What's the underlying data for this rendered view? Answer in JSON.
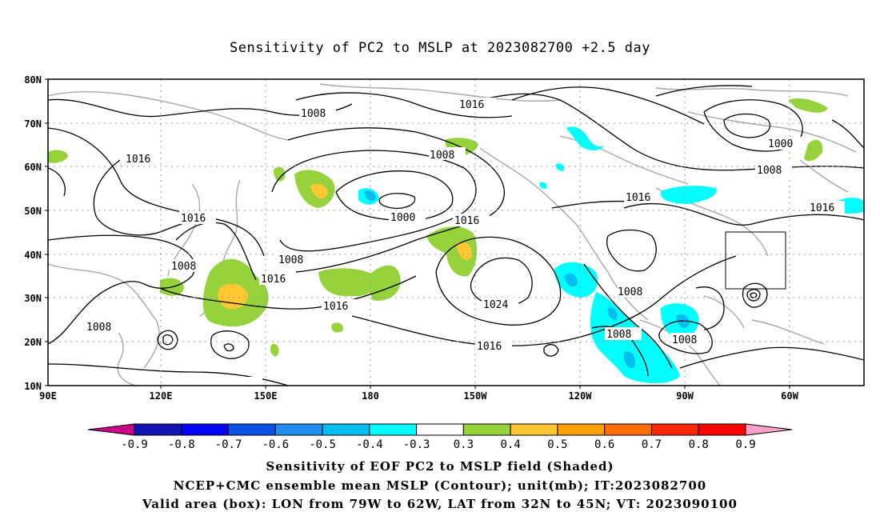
{
  "title": "Sensitivity of PC2 to MSLP at 2023082700 +2.5 day",
  "lat_labels": [
    "80N",
    "70N",
    "60N",
    "50N",
    "40N",
    "30N",
    "20N",
    "10N"
  ],
  "lon_labels": [
    "90E",
    "120E",
    "150E",
    "180",
    "150W",
    "120W",
    "90W",
    "60W"
  ],
  "contour_labels": [
    "1008",
    "1016",
    "1008",
    "1016",
    "1008",
    "1000",
    "1000",
    "1008",
    "1016",
    "1016",
    "1016",
    "1008",
    "1016",
    "1008",
    "1016",
    "1024",
    "1016",
    "1008",
    "1008",
    "1016",
    "1008"
  ],
  "colorbar": {
    "labels": [
      "-0.9",
      "-0.8",
      "-0.7",
      "-0.6",
      "-0.5",
      "-0.4",
      "-0.3",
      "0.3",
      "0.4",
      "0.5",
      "0.6",
      "0.7",
      "0.8",
      "0.9"
    ],
    "colors": [
      "#c8008a",
      "#1414b4",
      "#0000ff",
      "#0a50e6",
      "#1e8cf0",
      "#00bef0",
      "#00ffff",
      "#ffffff",
      "#96d23c",
      "#ffc832",
      "#ffa000",
      "#ff6e00",
      "#ff2800",
      "#ff0000",
      "#ffa0c8"
    ]
  },
  "valid_box": {
    "lon_from": "79W",
    "lon_to": "62W",
    "lat_from": "32N",
    "lat_to": "45N"
  },
  "caption": {
    "line1": "Sensitivity of EOF PC2 to MSLP field (Shaded)",
    "line2": "NCEP+CMC ensemble mean MSLP (Contour); unit(mb); IT:2023082700",
    "line3": "Valid area (box): LON from 79W to 62W, LAT from 32N to 45N; VT: 2023090100"
  }
}
